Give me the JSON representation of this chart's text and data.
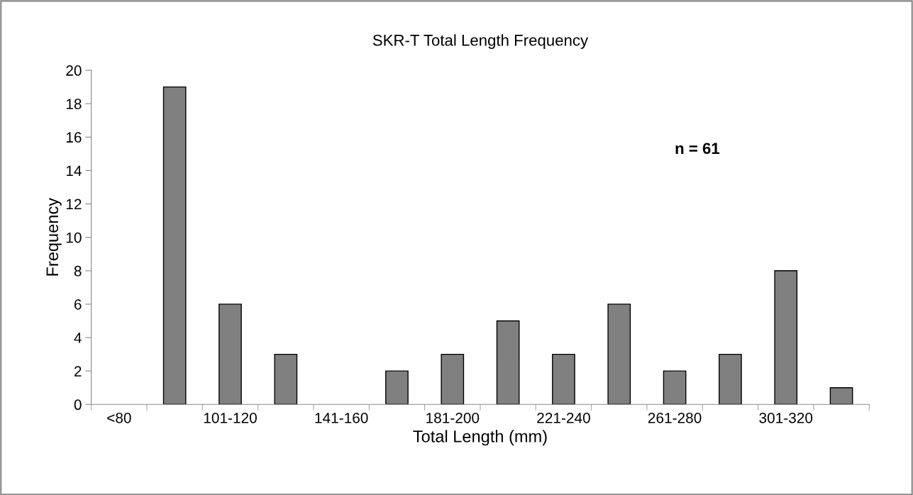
{
  "chart_data": {
    "type": "bar",
    "title": "SKR-T Total Length Frequency",
    "xlabel": "Total Length (mm)",
    "ylabel": "Frequency",
    "categories": [
      "<80",
      null,
      "101-120",
      null,
      "141-160",
      null,
      "181-200",
      null,
      "221-240",
      null,
      "261-280",
      null,
      "301-320",
      null
    ],
    "values": [
      0,
      19,
      6,
      3,
      0,
      2,
      3,
      5,
      3,
      6,
      2,
      3,
      8,
      1
    ],
    "color": "#808080",
    "ylim": [
      0,
      20
    ],
    "yticks": [
      0,
      2,
      4,
      6,
      8,
      10,
      12,
      14,
      16,
      18,
      20
    ],
    "grid": false,
    "legend": false,
    "annotations": [
      "n = 61"
    ]
  }
}
